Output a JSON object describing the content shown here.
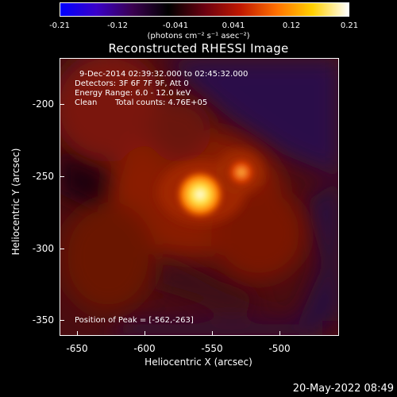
{
  "colorbar": {
    "ticks": [
      "-0.21",
      "-0.12",
      "-0.041",
      "0.041",
      "0.12",
      "0.21"
    ],
    "units": "(photons cm⁻² s⁻¹ asec⁻²)",
    "gradient_colors": [
      "#0000ff",
      "#3a00c8",
      "#3a0050",
      "#000000",
      "#6a0010",
      "#c01800",
      "#ff7000",
      "#ffd000",
      "#ffffff"
    ]
  },
  "title": "Reconstructed RHESSI Image",
  "info": {
    "time_range": "9-Dec-2014 02:39:32.000 to 02:45:32.000",
    "detectors": "Detectors: 3F 6F 7F 9F, Att 0",
    "energy": "Energy Range: 6.0 - 12.0 keV",
    "clean_label": "Clean",
    "total_counts": "Total counts: 4.76E+05",
    "peak": "Position of Peak = [-562,-263]"
  },
  "axes": {
    "xlabel": "Heliocentric X (arcsec)",
    "ylabel": "Heliocentric Y (arcsec)",
    "xticks": [
      "-650",
      "-600",
      "-550",
      "-500"
    ],
    "yticks": [
      "-200",
      "-250",
      "-300",
      "-350"
    ]
  },
  "timestamp": "20-May-2022 08:49",
  "colors": {
    "background": "#000000",
    "text": "#ffffff",
    "source_core": "#ffffc0",
    "source_mid": "#ff9000",
    "halo": "#7a1200",
    "negative": "#2a0850"
  }
}
